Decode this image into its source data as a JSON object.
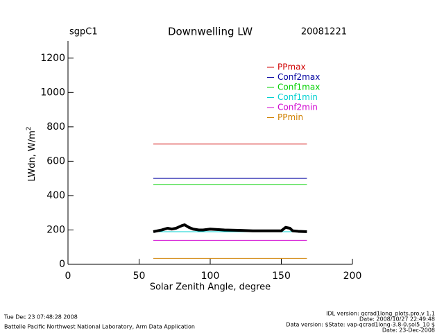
{
  "chart_data": {
    "type": "line",
    "site": "sgpC1",
    "title": "Downwelling LW",
    "date": "20081221",
    "xlabel": "Solar Zenith Angle, degree",
    "ylabel": "LWdn, W/m",
    "ylabel_superscript": "2",
    "xlim": [
      0,
      200
    ],
    "xticks": [
      0,
      50,
      100,
      150,
      200
    ],
    "ylim": [
      0,
      1300
    ],
    "yticks": [
      0,
      200,
      400,
      600,
      800,
      1000,
      1200
    ],
    "series": [
      {
        "name": "PPmax",
        "color": "#d00000",
        "x": [
          60,
          168
        ],
        "values": [
          700,
          700
        ]
      },
      {
        "name": "Conf2max",
        "color": "#0000a0",
        "x": [
          60,
          168
        ],
        "values": [
          500,
          500
        ]
      },
      {
        "name": "Conf1max",
        "color": "#00d000",
        "x": [
          60,
          168
        ],
        "values": [
          465,
          465
        ]
      },
      {
        "name": "Conf1min",
        "color": "#00d0d0",
        "x": [
          60,
          168
        ],
        "values": [
          190,
          190
        ]
      },
      {
        "name": "Conf2min",
        "color": "#d000d0",
        "x": [
          60,
          168
        ],
        "values": [
          140,
          140
        ]
      },
      {
        "name": "PPmin",
        "color": "#d08000",
        "x": [
          60,
          168
        ],
        "values": [
          35,
          35
        ]
      },
      {
        "color": "#000000",
        "x": [
          60,
          63,
          66,
          70,
          73,
          76,
          80,
          82,
          85,
          88,
          92,
          95,
          100,
          110,
          120,
          130,
          140,
          150,
          153,
          156,
          158,
          162,
          168
        ],
        "values": [
          190,
          195,
          200,
          210,
          205,
          210,
          225,
          230,
          215,
          205,
          200,
          200,
          205,
          200,
          198,
          195,
          195,
          195,
          215,
          210,
          195,
          192,
          190
        ]
      }
    ],
    "footer_left": [
      "Tue Dec 23 07:48:28 2008",
      "Battelle Pacific Northwest National Laboratory, Arm Data Application"
    ],
    "footer_right": [
      "IDL version: qcrad1long_plots.pro,v 1.1",
      "Date: 2008/10/27 22:49:48",
      "Data version: $State: vap-qcrad1long-3.8-0.sol5_10 $",
      "Date: 23-Dec-2008"
    ]
  }
}
